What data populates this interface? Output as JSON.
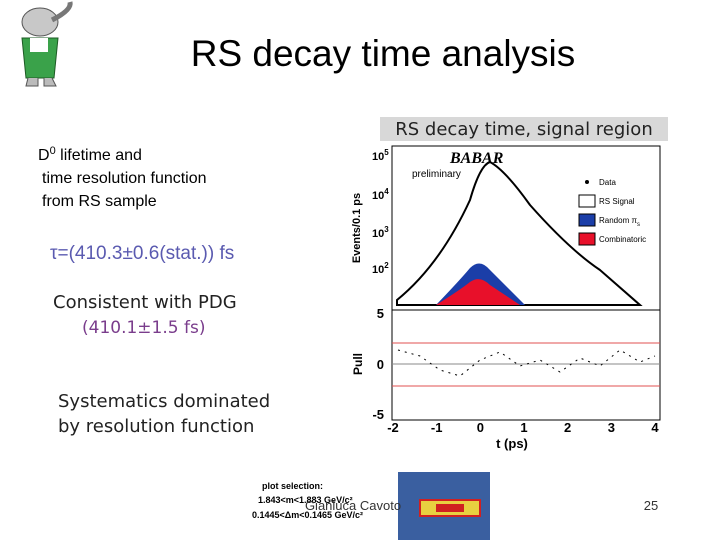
{
  "slide": {
    "title": "RS decay time analysis",
    "left_text": {
      "line1": {
        "symbol": "D",
        "sup": "0",
        "text": " lifetime and"
      },
      "line2": "time resolution function",
      "line3": "from RS sample"
    },
    "result": "τ=(410.3±0.6(stat.)) fs",
    "pdg": {
      "line1": "Consistent with PDG",
      "line2": "(410.1±1.5 fs)"
    },
    "systematics": {
      "line1": "Systematics dominated",
      "line2": "by resolution function"
    },
    "plot": {
      "title": "RS decay time, signal region",
      "experiment": "BABAR",
      "status": "preliminary",
      "y_label": "Events/0.1 ps",
      "pull_label": "Pull",
      "x_label": "t (ps)",
      "y_ticks": [
        {
          "base": "10",
          "exp": "5"
        },
        {
          "base": "10",
          "exp": "4"
        },
        {
          "base": "10",
          "exp": "3"
        },
        {
          "base": "10",
          "exp": "2"
        }
      ],
      "pull_ticks": [
        "5",
        "0",
        "-5"
      ],
      "x_ticks": [
        "-2",
        "-1",
        "0",
        "1",
        "2",
        "3",
        "4"
      ],
      "legend": [
        {
          "label": "Data"
        },
        {
          "label": "RS Signal"
        },
        {
          "label": "Random π",
          "sub": "s"
        },
        {
          "label": "Combinatoric"
        }
      ]
    },
    "inset": {
      "line1": "plot selection:",
      "line2": "1.843<m<1.883 GeV/c²",
      "line3": "0.1445<Δm<0.1465 GeV/c²"
    },
    "footer": {
      "author": "Gianluca Cavoto",
      "page": "25"
    }
  }
}
